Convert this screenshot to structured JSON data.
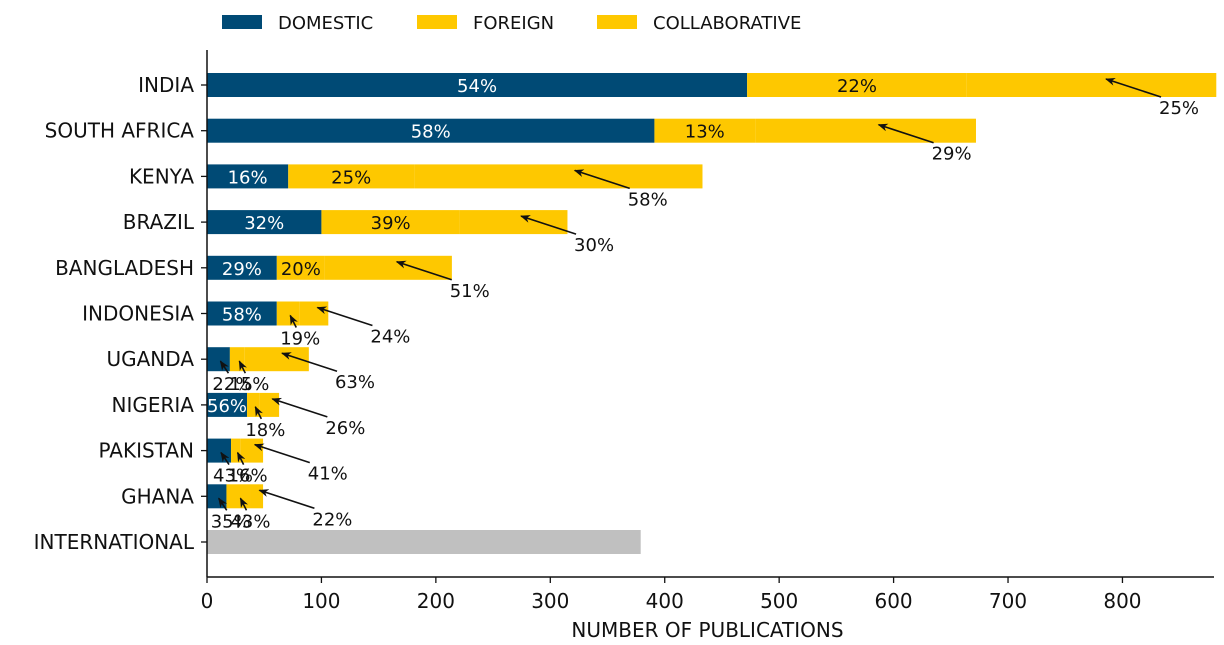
{
  "chart_data": {
    "type": "bar",
    "orientation": "horizontal",
    "stacked": true,
    "xlabel": "NUMBER OF PUBLICATIONS",
    "ylabel": "",
    "xlim": [
      0,
      880
    ],
    "xticks": [
      0,
      100,
      200,
      300,
      400,
      500,
      600,
      700,
      800
    ],
    "legend_position": "top",
    "colors": {
      "DOMESTIC": "#004a75",
      "FOREIGN": "#fec800",
      "COLLABORATIVE": "#fec800",
      "INTERNATIONAL": "#c0c0c0"
    },
    "categories": [
      "INDIA",
      "SOUTH AFRICA",
      "KENYA",
      "BRAZIL",
      "BANGLADESH",
      "INDONESIA",
      "UGANDA",
      "NIGERIA",
      "PAKISTAN",
      "GHANA",
      "INTERNATIONAL"
    ],
    "series": [
      {
        "name": "DOMESTIC",
        "values": [
          472,
          391,
          71,
          100,
          61,
          61,
          20,
          35,
          21,
          17,
          0
        ]
      },
      {
        "name": "FOREIGN",
        "values": [
          192,
          88,
          110,
          121,
          42,
          20,
          13,
          11,
          8,
          21,
          0
        ]
      },
      {
        "name": "COLLABORATIVE",
        "values": [
          218,
          193,
          252,
          94,
          111,
          25,
          56,
          17,
          20,
          11,
          0
        ]
      },
      {
        "name": "INTERNATIONAL",
        "values": [
          0,
          0,
          0,
          0,
          0,
          0,
          0,
          0,
          0,
          0,
          379
        ]
      }
    ],
    "percent_labels": {
      "DOMESTIC": [
        "54%",
        "58%",
        "16%",
        "32%",
        "29%",
        "58%",
        "22%",
        "56%",
        "43%",
        "35%"
      ],
      "FOREIGN": [
        "22%",
        "13%",
        "25%",
        "39%",
        "20%",
        "19%",
        "15%",
        "18%",
        "16%",
        "43%"
      ],
      "COLLABORATIVE": [
        "25%",
        "29%",
        "58%",
        "30%",
        "51%",
        "24%",
        "63%",
        "26%",
        "41%",
        "22%"
      ]
    }
  }
}
